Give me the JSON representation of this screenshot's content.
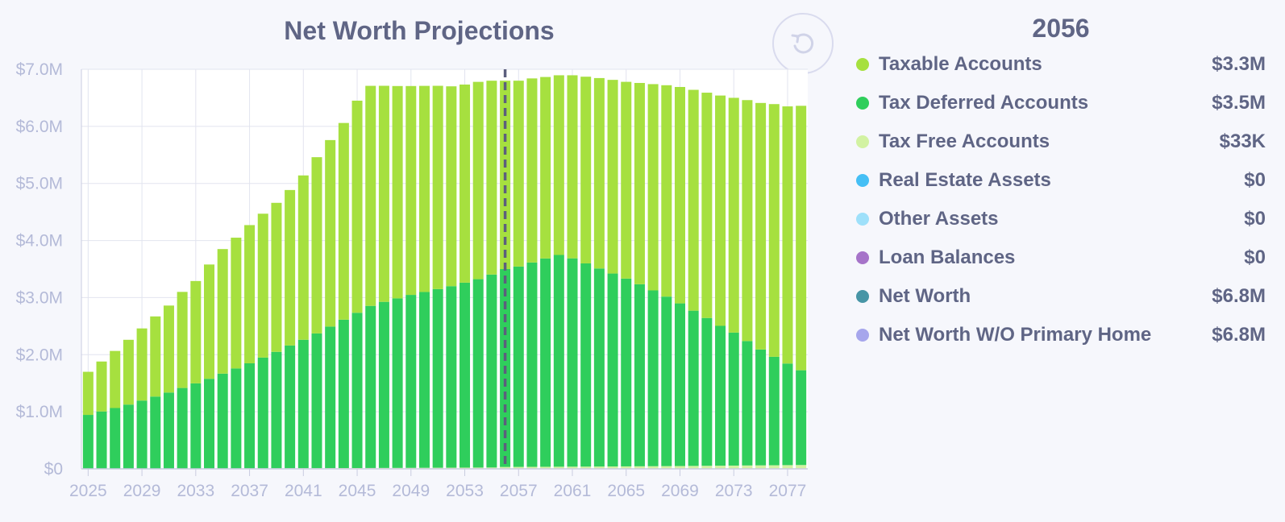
{
  "chart_data": {
    "type": "bar",
    "stacked": true,
    "title": "Net Worth Projections",
    "xlabel": "",
    "ylabel": "",
    "ylim": [
      0,
      7000000
    ],
    "y_ticks": [
      "$0",
      "$1.0M",
      "$2.0M",
      "$3.0M",
      "$4.0M",
      "$5.0M",
      "$6.0M",
      "$7.0M"
    ],
    "x_tick_labels": [
      "2025",
      "2029",
      "2033",
      "2037",
      "2041",
      "2045",
      "2049",
      "2053",
      "2057",
      "2061",
      "2065",
      "2069",
      "2073",
      "2077"
    ],
    "categories": [
      "2025",
      "2026",
      "2027",
      "2028",
      "2029",
      "2030",
      "2031",
      "2032",
      "2033",
      "2034",
      "2035",
      "2036",
      "2037",
      "2038",
      "2039",
      "2040",
      "2041",
      "2042",
      "2043",
      "2044",
      "2045",
      "2046",
      "2047",
      "2048",
      "2049",
      "2050",
      "2051",
      "2052",
      "2053",
      "2054",
      "2055",
      "2056",
      "2057",
      "2058",
      "2059",
      "2060",
      "2061",
      "2062",
      "2063",
      "2064",
      "2065",
      "2066",
      "2067",
      "2068",
      "2069",
      "2070",
      "2071",
      "2072",
      "2073",
      "2074",
      "2075",
      "2076",
      "2077",
      "2078"
    ],
    "series": [
      {
        "name": "Tax Free Accounts",
        "color": "#d2f2a2",
        "values": [
          5000,
          5200,
          5400,
          5700,
          6000,
          6300,
          6600,
          7000,
          7400,
          7800,
          8200,
          8700,
          9200,
          9700,
          10200,
          10800,
          11400,
          12000,
          12700,
          13400,
          14100,
          14900,
          15700,
          16500,
          17400,
          18400,
          19400,
          20400,
          21500,
          22600,
          23800,
          33000,
          34000,
          35000,
          36000,
          37000,
          38000,
          39000,
          40000,
          41500,
          43000,
          44500,
          46000,
          47500,
          49000,
          51000,
          53000,
          55000,
          57000,
          59000,
          61000,
          63000,
          65000,
          67000
        ]
      },
      {
        "name": "Tax Deferred Accounts",
        "color": "#2fce5c",
        "values": [
          940000,
          1000000,
          1060000,
          1120000,
          1190000,
          1260000,
          1330000,
          1410000,
          1490000,
          1570000,
          1660000,
          1750000,
          1840000,
          1940000,
          2040000,
          2150000,
          2250000,
          2360000,
          2480000,
          2600000,
          2720000,
          2840000,
          2910000,
          2970000,
          3030000,
          3080000,
          3130000,
          3180000,
          3240000,
          3300000,
          3380000,
          3467000,
          3510000,
          3580000,
          3650000,
          3710000,
          3650000,
          3560000,
          3470000,
          3380000,
          3290000,
          3190000,
          3080000,
          2970000,
          2850000,
          2720000,
          2590000,
          2450000,
          2330000,
          2180000,
          2030000,
          1900000,
          1780000,
          1660000
        ]
      },
      {
        "name": "Taxable Accounts",
        "color": "#a6e03f",
        "values": [
          755000,
          875000,
          1000000,
          1135000,
          1264000,
          1404000,
          1524000,
          1683000,
          1793000,
          2002000,
          2182000,
          2291000,
          2421000,
          2520000,
          2610000,
          2724000,
          2879000,
          3088000,
          3267000,
          3446000,
          3716000,
          3855000,
          3785000,
          3720000,
          3659000,
          3611000,
          3561000,
          3501000,
          3471000,
          3457000,
          3396000,
          3300000,
          3256000,
          3225000,
          3179000,
          3148000,
          3207000,
          3271000,
          3336000,
          3393000,
          3447000,
          3526000,
          3614000,
          3703000,
          3791000,
          3869000,
          3947000,
          4035000,
          4113000,
          4221000,
          4319000,
          4427000,
          4505000,
          4633000
        ]
      }
    ],
    "highlight_year": "2056"
  },
  "legend": {
    "year": "2056",
    "items": [
      {
        "label": "Taxable Accounts",
        "value": "$3.3M",
        "color": "#a6e03f"
      },
      {
        "label": "Tax Deferred Accounts",
        "value": "$3.5M",
        "color": "#2fce5c"
      },
      {
        "label": "Tax Free Accounts",
        "value": "$33K",
        "color": "#d2f2a2"
      },
      {
        "label": "Real Estate Assets",
        "value": "$0",
        "color": "#45bff5"
      },
      {
        "label": "Other Assets",
        "value": "$0",
        "color": "#9ee0fa"
      },
      {
        "label": "Loan Balances",
        "value": "$0",
        "color": "#a674c9"
      },
      {
        "label": "Net Worth",
        "value": "$6.8M",
        "color": "#4795a6"
      },
      {
        "label": "Net Worth W/O Primary Home",
        "value": "$6.8M",
        "color": "#a6a6ec"
      }
    ]
  },
  "reset_icon": "reset-zoom-icon"
}
